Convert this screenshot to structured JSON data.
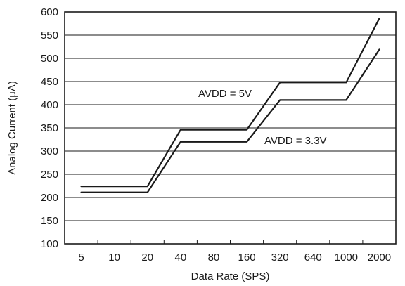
{
  "chart_data": {
    "type": "line",
    "xlabel": "Data Rate (SPS)",
    "ylabel": "Analog Current (µA)",
    "x_scale": "categorical",
    "categories": [
      "5",
      "10",
      "20",
      "40",
      "80",
      "160",
      "320",
      "640",
      "1000",
      "2000"
    ],
    "ylim": [
      100,
      600
    ],
    "yticks": [
      100,
      150,
      200,
      250,
      300,
      350,
      400,
      450,
      500,
      550,
      600
    ],
    "grid": "horizontal",
    "colors": {
      "line": "#1a1a1a",
      "grid": "#1a1a1a",
      "background": "#ffffff"
    },
    "series": [
      {
        "name": "AVDD = 5V",
        "points": [
          {
            "x": "5",
            "y": 224
          },
          {
            "x": "10",
            "y": 224
          },
          {
            "x": "20",
            "y": 224
          },
          {
            "x": "40",
            "y": 346
          },
          {
            "x": "80",
            "y": 346
          },
          {
            "x": "160",
            "y": 346
          },
          {
            "x": "320",
            "y": 448
          },
          {
            "x": "640",
            "y": 448
          },
          {
            "x": "1000",
            "y": 448
          },
          {
            "x": "2000",
            "y": 586
          }
        ]
      },
      {
        "name": "AVDD = 3.3V",
        "points": [
          {
            "x": "5",
            "y": 211
          },
          {
            "x": "10",
            "y": 211
          },
          {
            "x": "20",
            "y": 211
          },
          {
            "x": "40",
            "y": 320
          },
          {
            "x": "80",
            "y": 320
          },
          {
            "x": "160",
            "y": 320
          },
          {
            "x": "320",
            "y": 410
          },
          {
            "x": "640",
            "y": 410
          },
          {
            "x": "1000",
            "y": 410
          },
          {
            "x": "2000",
            "y": 519
          }
        ]
      }
    ]
  }
}
